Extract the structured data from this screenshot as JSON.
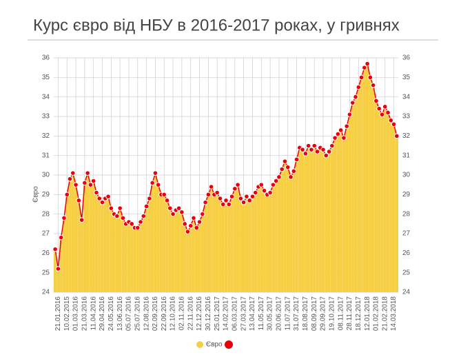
{
  "chart_data": {
    "type": "bar",
    "title": "Курс євро від НБУ в 2016-2017 роках, у гривнях",
    "y_label": "Євро",
    "categories": [
      null,
      "21.01.2016",
      null,
      null,
      "10.02.2015",
      null,
      null,
      "01.03.2016",
      null,
      null,
      "21.03.2016",
      null,
      null,
      "11.04.2016",
      null,
      null,
      "29.04.2016",
      null,
      null,
      "24.05.2016",
      null,
      null,
      "13.06.2016",
      null,
      null,
      "05.07.2016",
      null,
      null,
      "25.07.2016",
      null,
      null,
      "12.08.2016",
      null,
      null,
      "02.09.2016",
      null,
      null,
      "22.09.2016",
      null,
      null,
      "12.10.2016",
      null,
      null,
      "02.11.2016",
      null,
      null,
      "22.11.2016",
      null,
      null,
      "12.12.2016",
      null,
      null,
      "30.12.2016",
      null,
      null,
      "25.01.2017",
      null,
      null,
      "14.02.2017",
      null,
      null,
      "06.03.2017",
      null,
      null,
      "27.03.2017",
      null,
      null,
      "13.04.2017",
      null,
      null,
      "11.05.2017",
      null,
      null,
      "30.05.2017",
      null,
      null,
      "20.06.2017",
      null,
      null,
      "11.07.2017",
      null,
      null,
      "31.07.2017",
      null,
      null,
      "18.08.2017",
      null,
      null,
      "08.09.2017",
      null,
      null,
      "29.09.2017",
      null,
      null,
      "19.10.2017",
      null,
      null,
      "08.11.2017",
      null,
      null,
      "28.11.2017",
      null,
      null,
      "18.12.2017",
      null,
      null,
      "12.01.2018",
      null,
      null,
      "01.02.2018",
      null,
      null,
      "21.02.2018",
      null,
      null,
      "14.03.2018",
      null
    ],
    "series": [
      {
        "name": "Євро",
        "color": "#f7cf45",
        "line_color": "#e8000b",
        "values": [
          26.2,
          25.2,
          26.8,
          27.8,
          29.0,
          29.8,
          30.1,
          29.5,
          28.7,
          27.7,
          29.6,
          30.1,
          29.5,
          29.7,
          29.1,
          28.8,
          28.6,
          28.8,
          28.9,
          28.3,
          28.0,
          27.9,
          28.3,
          27.8,
          27.5,
          27.6,
          27.5,
          27.3,
          27.3,
          27.6,
          27.9,
          28.4,
          28.8,
          29.6,
          30.1,
          29.5,
          29.0,
          29.0,
          28.7,
          28.3,
          28.0,
          28.2,
          28.3,
          28.1,
          27.5,
          27.1,
          27.4,
          27.8,
          27.3,
          27.6,
          28.0,
          28.6,
          29.0,
          29.4,
          29.0,
          29.1,
          28.8,
          28.5,
          28.7,
          28.5,
          28.9,
          29.3,
          29.5,
          28.8,
          28.6,
          28.9,
          28.7,
          28.9,
          29.1,
          29.4,
          29.5,
          29.2,
          29.0,
          29.1,
          29.5,
          29.7,
          29.9,
          30.3,
          30.7,
          30.4,
          29.9,
          30.2,
          30.8,
          31.4,
          31.3,
          31.1,
          31.5,
          31.3,
          31.5,
          31.2,
          31.4,
          31.3,
          31.0,
          31.2,
          31.5,
          31.9,
          32.1,
          32.3,
          31.9,
          32.5,
          33.1,
          33.7,
          34.0,
          34.5,
          35.0,
          35.5,
          35.7,
          35.0,
          34.6,
          33.8,
          33.4,
          33.1,
          33.5,
          33.2,
          32.8,
          32.6,
          32.0
        ]
      }
    ],
    "ylim": [
      24,
      36
    ],
    "yticks": [
      24,
      25,
      26,
      27,
      28,
      29,
      30,
      31,
      32,
      33,
      34,
      35,
      36
    ],
    "grid": true
  }
}
